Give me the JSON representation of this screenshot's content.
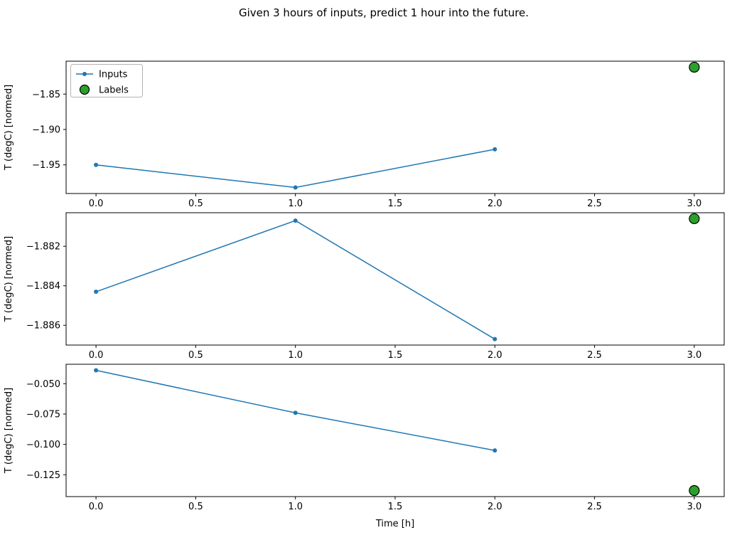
{
  "title": "Given 3 hours of inputs, predict 1 hour into the future.",
  "xlabel": "Time [h]",
  "legend": {
    "entries": [
      "Inputs",
      "Labels"
    ]
  },
  "colors": {
    "inputs": "#1f77b4",
    "labels": "#2ca02c",
    "labels_edge": "#000000",
    "legend_border": "#b3b3b3"
  },
  "chart_data": [
    {
      "type": "line",
      "ylabel": "T (degC) [normed]",
      "x": [
        0,
        1,
        2
      ],
      "series": [
        {
          "name": "Inputs",
          "values": [
            -1.95,
            -1.982,
            -1.928
          ]
        }
      ],
      "label_point": {
        "x": 3,
        "y": -1.812
      },
      "xlim": [
        -0.15,
        3.15
      ],
      "ylim": [
        -1.9905,
        -1.8035
      ],
      "ytick_values": [
        -1.85,
        -1.9,
        -1.95
      ],
      "ytick_labels": [
        "−1.85",
        "−1.90",
        "−1.95"
      ],
      "xtick_values": [
        0,
        0.5,
        1,
        1.5,
        2,
        2.5,
        3
      ],
      "xtick_labels": [
        "0.0",
        "0.5",
        "1.0",
        "1.5",
        "2.0",
        "2.5",
        "3.0"
      ],
      "show_legend": true,
      "grid": false,
      "legend_position": "upper left"
    },
    {
      "type": "line",
      "ylabel": "T (degC) [normed]",
      "x": [
        0,
        1,
        2
      ],
      "series": [
        {
          "name": "Inputs",
          "values": [
            -1.8843,
            -1.8807,
            -1.8867
          ]
        }
      ],
      "label_point": {
        "x": 3,
        "y": -1.8806
      },
      "xlim": [
        -0.15,
        3.15
      ],
      "ylim": [
        -1.887,
        -1.8803
      ],
      "ytick_values": [
        -1.882,
        -1.884,
        -1.886
      ],
      "ytick_labels": [
        "−1.882",
        "−1.884",
        "−1.886"
      ],
      "xtick_values": [
        0,
        0.5,
        1,
        1.5,
        2,
        2.5,
        3
      ],
      "xtick_labels": [
        "0.0",
        "0.5",
        "1.0",
        "1.5",
        "2.0",
        "2.5",
        "3.0"
      ],
      "show_legend": false,
      "grid": false
    },
    {
      "type": "line",
      "ylabel": "T (degC) [normed]",
      "x": [
        0,
        1,
        2
      ],
      "series": [
        {
          "name": "Inputs",
          "values": [
            -0.039,
            -0.074,
            -0.105
          ]
        }
      ],
      "label_point": {
        "x": 3,
        "y": -0.138
      },
      "xlim": [
        -0.15,
        3.15
      ],
      "ylim": [
        -0.143,
        -0.034
      ],
      "ytick_values": [
        -0.05,
        -0.075,
        -0.1,
        -0.125
      ],
      "ytick_labels": [
        "−0.050",
        "−0.075",
        "−0.100",
        "−0.125"
      ],
      "xtick_values": [
        0,
        0.5,
        1,
        1.5,
        2,
        2.5,
        3
      ],
      "xtick_labels": [
        "0.0",
        "0.5",
        "1.0",
        "1.5",
        "2.0",
        "2.5",
        "3.0"
      ],
      "show_legend": false,
      "grid": false
    }
  ]
}
